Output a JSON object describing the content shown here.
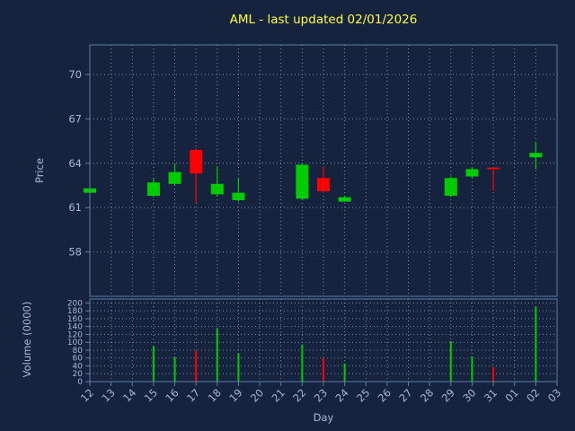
{
  "colors": {
    "background": "#16233e",
    "title": "#ffff40",
    "label": "#a6b8d8",
    "spine": "#5f7ea8",
    "grid": "#d8e0ec",
    "green": "#00cc00",
    "red": "#ff0000"
  },
  "chart_data": {
    "type": "candlestick",
    "title": "AML - last updated 02/01/2026",
    "xlabel": "Day",
    "x_ticks": [
      "12",
      "13",
      "14",
      "15",
      "16",
      "17",
      "18",
      "19",
      "20",
      "21",
      "22",
      "23",
      "24",
      "25",
      "26",
      "27",
      "28",
      "29",
      "30",
      "31",
      "01",
      "02",
      "03"
    ],
    "price": {
      "label": "Price",
      "ticks": [
        58,
        61,
        64,
        67,
        70
      ],
      "ylim": [
        55,
        72
      ]
    },
    "volume": {
      "label": "Volume (0000)",
      "ticks": [
        0,
        20,
        40,
        60,
        80,
        100,
        120,
        140,
        160,
        180,
        200
      ],
      "ylim": [
        0,
        210
      ]
    },
    "legend": "none",
    "grid": "dotted",
    "candles": [
      {
        "day": "12",
        "open": 62.0,
        "close": 62.3,
        "high": 62.3,
        "low": 62.0,
        "volume": 0
      },
      {
        "day": "15",
        "open": 61.8,
        "close": 62.7,
        "high": 63.0,
        "low": 61.7,
        "volume": 90
      },
      {
        "day": "16",
        "open": 62.6,
        "close": 63.4,
        "high": 64.0,
        "low": 62.5,
        "volume": 62
      },
      {
        "day": "17",
        "open": 64.9,
        "close": 63.3,
        "high": 65.0,
        "low": 61.3,
        "volume": 78
      },
      {
        "day": "18",
        "open": 61.9,
        "close": 62.6,
        "high": 63.8,
        "low": 61.8,
        "volume": 135
      },
      {
        "day": "19",
        "open": 61.5,
        "close": 62.0,
        "high": 63.0,
        "low": 61.4,
        "volume": 71
      },
      {
        "day": "22",
        "open": 61.6,
        "close": 63.9,
        "high": 64.0,
        "low": 61.5,
        "volume": 94
      },
      {
        "day": "23",
        "open": 63.0,
        "close": 62.1,
        "high": 63.8,
        "low": 62.0,
        "volume": 60
      },
      {
        "day": "24",
        "open": 61.4,
        "close": 61.7,
        "high": 61.8,
        "low": 61.4,
        "volume": 46
      },
      {
        "day": "29",
        "open": 61.8,
        "close": 63.0,
        "high": 63.1,
        "low": 61.7,
        "volume": 103
      },
      {
        "day": "30",
        "open": 63.1,
        "close": 63.6,
        "high": 63.7,
        "low": 63.0,
        "volume": 64
      },
      {
        "day": "31",
        "open": 63.7,
        "close": 63.6,
        "high": 63.7,
        "low": 62.1,
        "volume": 37
      },
      {
        "day": "02",
        "open": 64.4,
        "close": 64.7,
        "high": 65.4,
        "low": 63.6,
        "volume": 190
      }
    ]
  }
}
